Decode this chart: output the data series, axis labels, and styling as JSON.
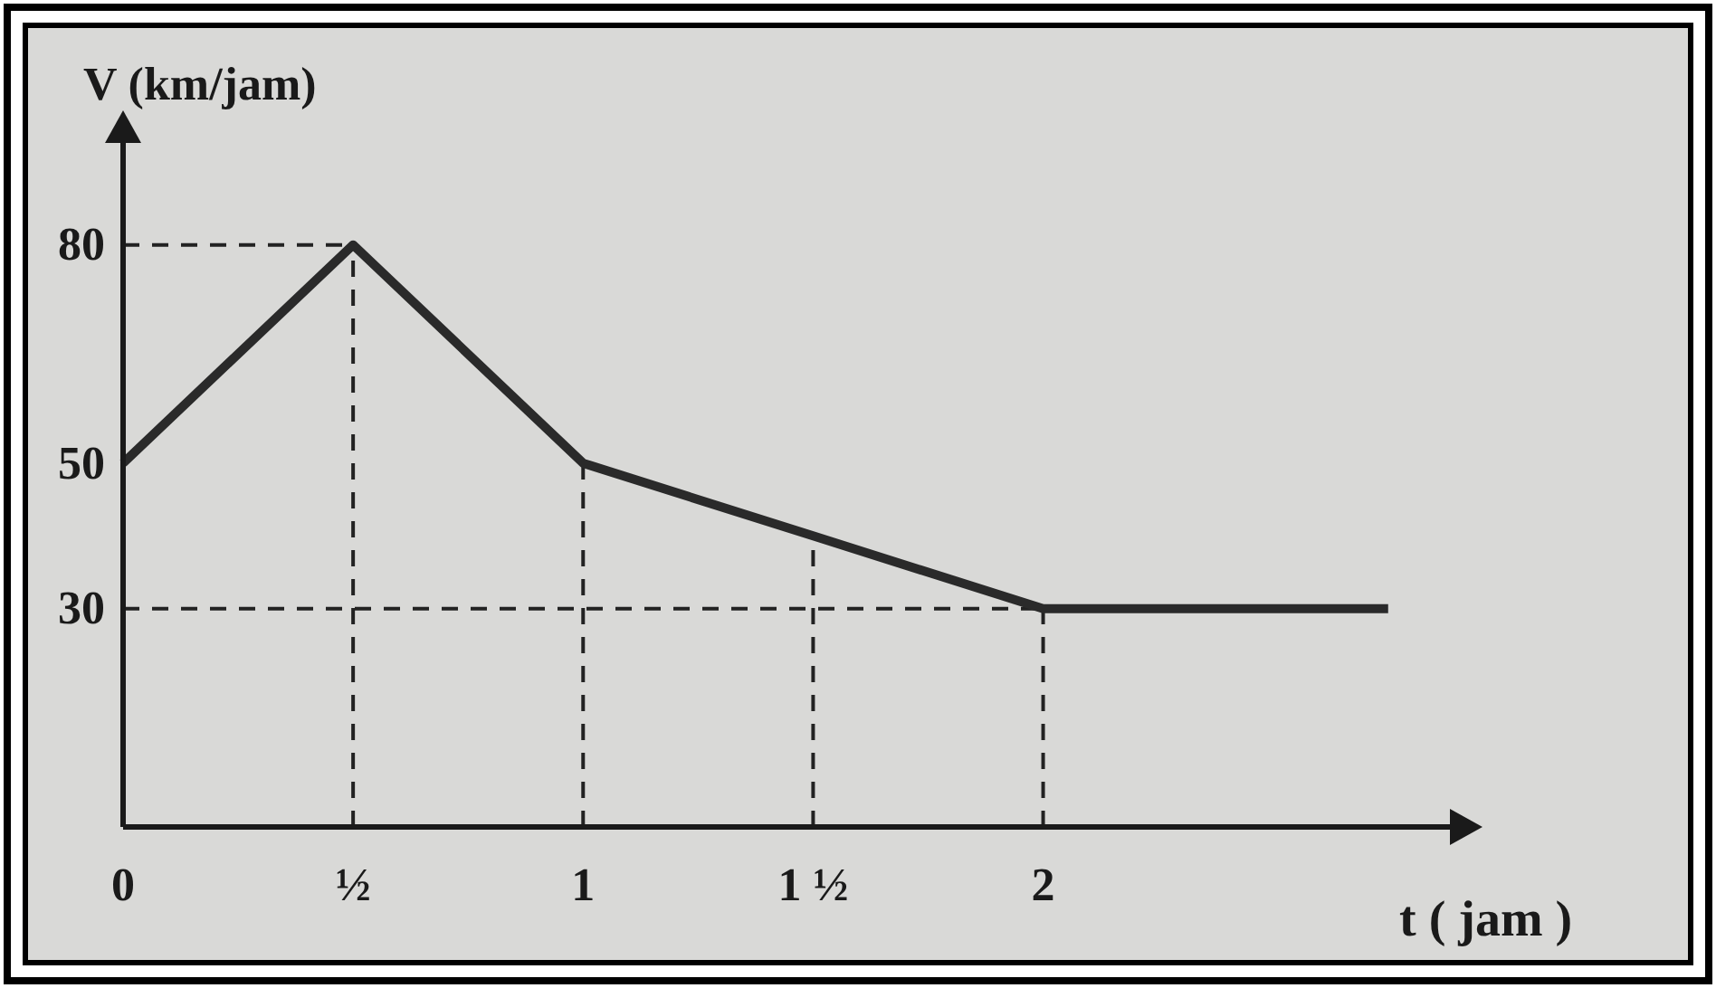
{
  "chart_data": {
    "type": "line",
    "xlabel": "t ( jam )",
    "ylabel": "V (km/jam)",
    "x": [
      0,
      0.5,
      1,
      1.5,
      2,
      2.75
    ],
    "series": [
      {
        "color": "#2a2a2a",
        "values": [
          50,
          80,
          50,
          40,
          30,
          30
        ]
      }
    ],
    "xlim": [
      0,
      2.9
    ],
    "ylim": [
      0,
      95
    ],
    "xticks": [
      {
        "value": 0,
        "label": "0"
      },
      {
        "value": 0.5,
        "label": "½"
      },
      1,
      {
        "value": 1.5,
        "label": "1 ½"
      },
      2
    ],
    "yticks": [
      30,
      50,
      80
    ],
    "ref_lines": [
      {
        "axis": "y",
        "value": 80,
        "line_style": "dashed"
      },
      {
        "axis": "y",
        "value": 30,
        "line_style": "dashed"
      },
      {
        "axis": "x",
        "value": 0.5,
        "line_style": "dashed"
      },
      {
        "axis": "x",
        "value": 1,
        "line_style": "dashed"
      },
      {
        "axis": "x",
        "value": 1.5,
        "line_style": "dashed"
      },
      {
        "axis": "x",
        "value": 2,
        "line_style": "dashed"
      }
    ],
    "grid": false,
    "marker": "none",
    "line_style": "solid"
  }
}
